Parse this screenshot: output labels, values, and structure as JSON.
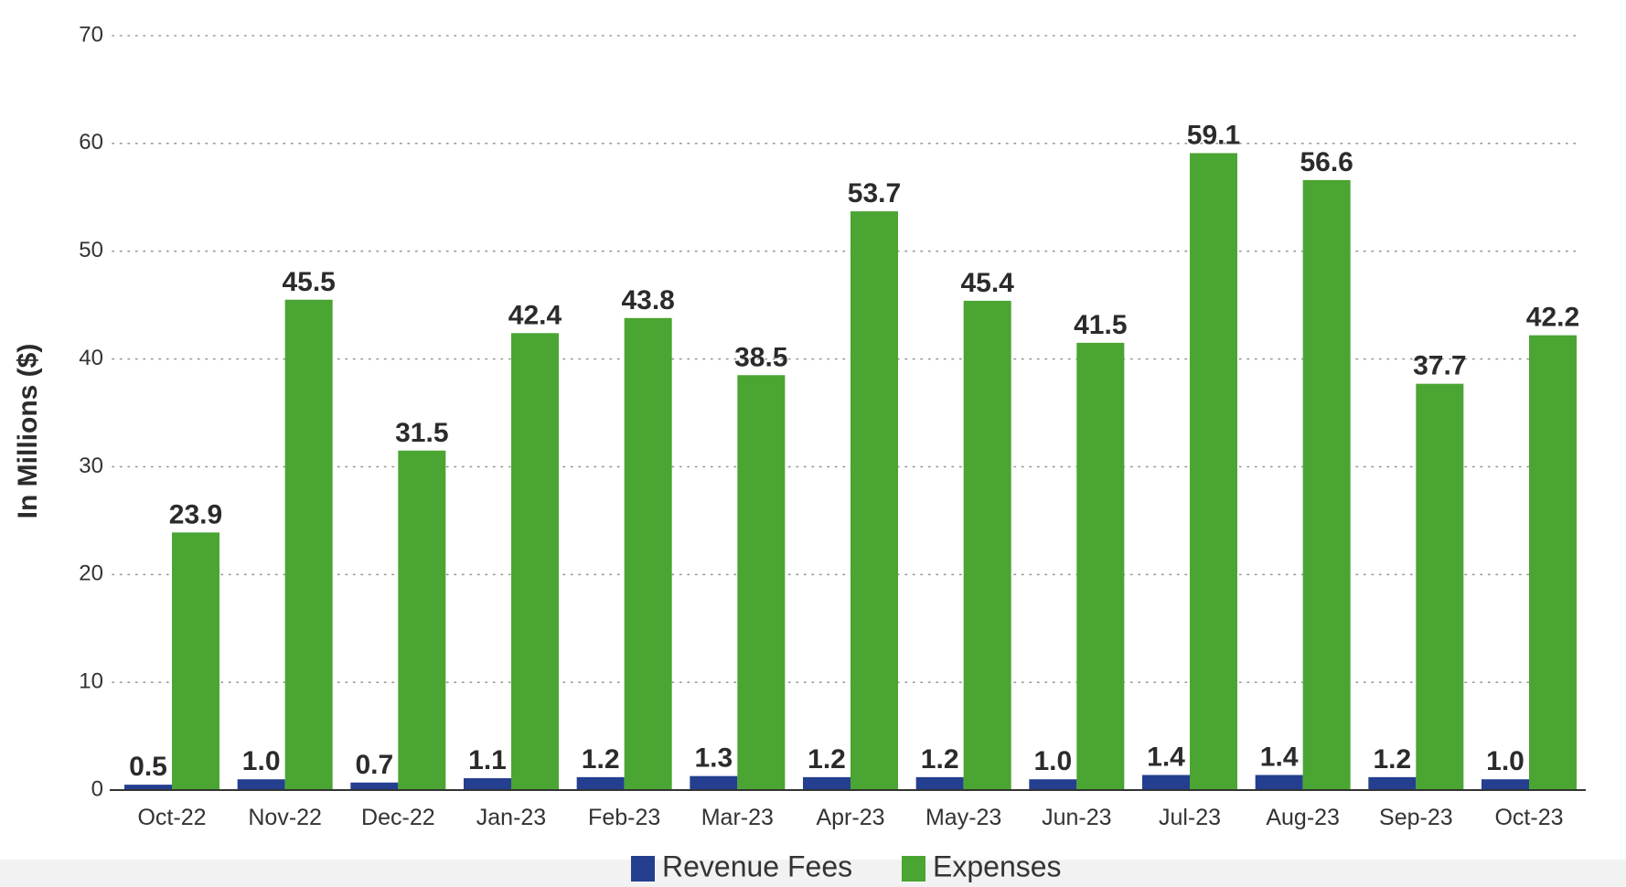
{
  "chart_data": {
    "type": "bar",
    "title": "",
    "xlabel": "",
    "ylabel": "In Millions ($)",
    "ylim": [
      0,
      70
    ],
    "yticks": [
      0,
      10,
      20,
      30,
      40,
      50,
      60,
      70
    ],
    "grid": true,
    "legend_position": "bottom",
    "categories": [
      "Oct-22",
      "Nov-22",
      "Dec-22",
      "Jan-23",
      "Feb-23",
      "Mar-23",
      "Apr-23",
      "May-23",
      "Jun-23",
      "Jul-23",
      "Aug-23",
      "Sep-23",
      "Oct-23"
    ],
    "series": [
      {
        "name": "Revenue Fees",
        "color": "#243f8f",
        "values": [
          0.5,
          1.0,
          0.7,
          1.1,
          1.2,
          1.3,
          1.2,
          1.2,
          1.0,
          1.4,
          1.4,
          1.2,
          1.0
        ],
        "labels": [
          "0.5",
          "1.0",
          "0.7",
          "1.1",
          "1.2",
          "1.3",
          "1.2",
          "1.2",
          "1.0",
          "1.4",
          "1.4",
          "1.2",
          "1.0"
        ]
      },
      {
        "name": "Expenses",
        "color": "#4aa532",
        "values": [
          23.9,
          45.5,
          31.5,
          42.4,
          43.8,
          38.5,
          53.7,
          45.4,
          41.5,
          59.1,
          56.6,
          37.7,
          42.2
        ],
        "labels": [
          "23.9",
          "45.5",
          "31.5",
          "42.4",
          "43.8",
          "38.5",
          "53.7",
          "45.4",
          "41.5",
          "59.1",
          "56.6",
          "37.7",
          "42.2"
        ]
      }
    ]
  }
}
